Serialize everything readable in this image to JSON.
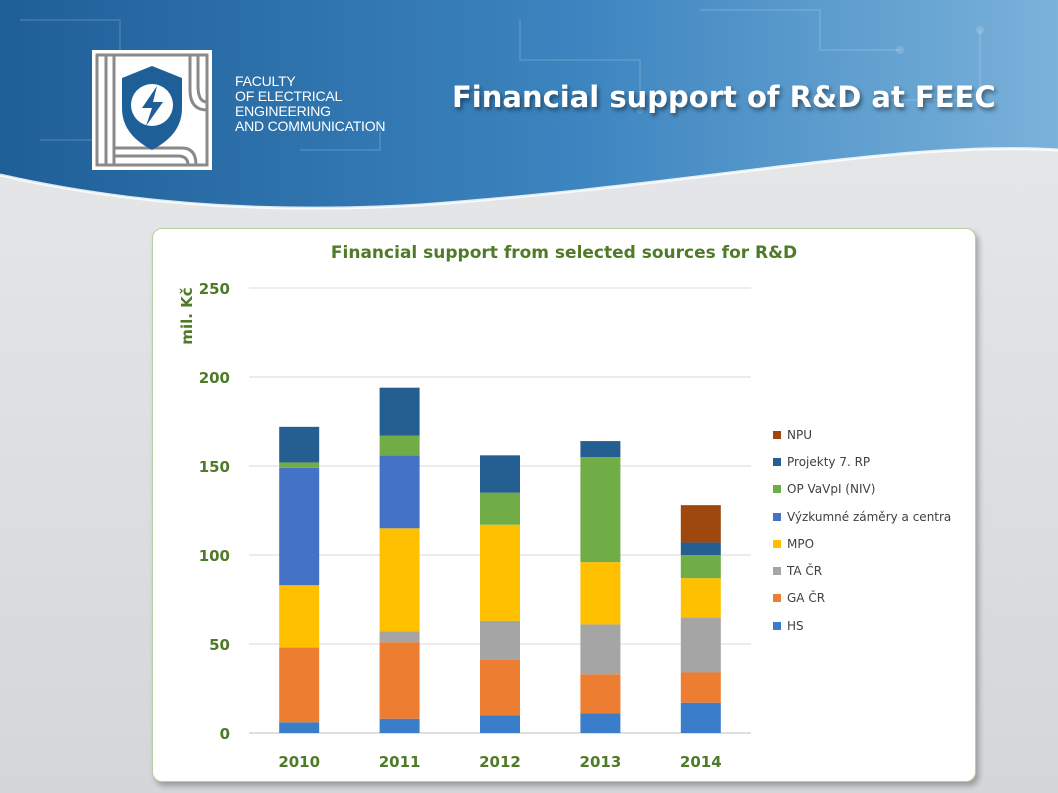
{
  "header": {
    "faculty_lines": [
      "FACULTY",
      "OF ELECTRICAL",
      "ENGINEERING",
      "AND COMMUNICATION"
    ],
    "slide_title": "Financial support of R&D at FEEC"
  },
  "colors": {
    "accent_green": "#4f7a28",
    "header_blue": "#2f6fa8"
  },
  "chart_data": {
    "type": "bar",
    "stacked": true,
    "title": "Financial support from selected sources for R&D",
    "xlabel": "",
    "ylabel": "mil. Kč",
    "ylim": [
      0,
      250
    ],
    "yticks": [
      0,
      50,
      100,
      150,
      200,
      250
    ],
    "grid": true,
    "legend_position": "right",
    "categories": [
      "2010",
      "2011",
      "2012",
      "2013",
      "2014"
    ],
    "series": [
      {
        "name": "HS",
        "color": "#3a7dc9",
        "values": [
          6,
          8,
          10,
          11,
          17
        ]
      },
      {
        "name": "GA ČR",
        "color": "#ed7d31",
        "values": [
          42,
          43,
          31,
          22,
          17
        ]
      },
      {
        "name": "TA ČR",
        "color": "#a5a5a5",
        "values": [
          0,
          6,
          22,
          28,
          31
        ]
      },
      {
        "name": "MPO",
        "color": "#ffc000",
        "values": [
          35,
          58,
          54,
          35,
          22
        ]
      },
      {
        "name": "Výzkumné záměry a centra",
        "color": "#4472c4",
        "values": [
          66,
          41,
          0,
          0,
          0
        ]
      },
      {
        "name": "OP VaVpI (NIV)",
        "color": "#70ad47",
        "values": [
          3,
          11,
          18,
          59,
          13
        ]
      },
      {
        "name": "Projekty 7. RP",
        "color": "#255e91",
        "values": [
          20,
          27,
          21,
          9,
          7
        ]
      },
      {
        "name": "NPU",
        "color": "#9e480e",
        "values": [
          0,
          0,
          0,
          0,
          21
        ]
      }
    ]
  }
}
